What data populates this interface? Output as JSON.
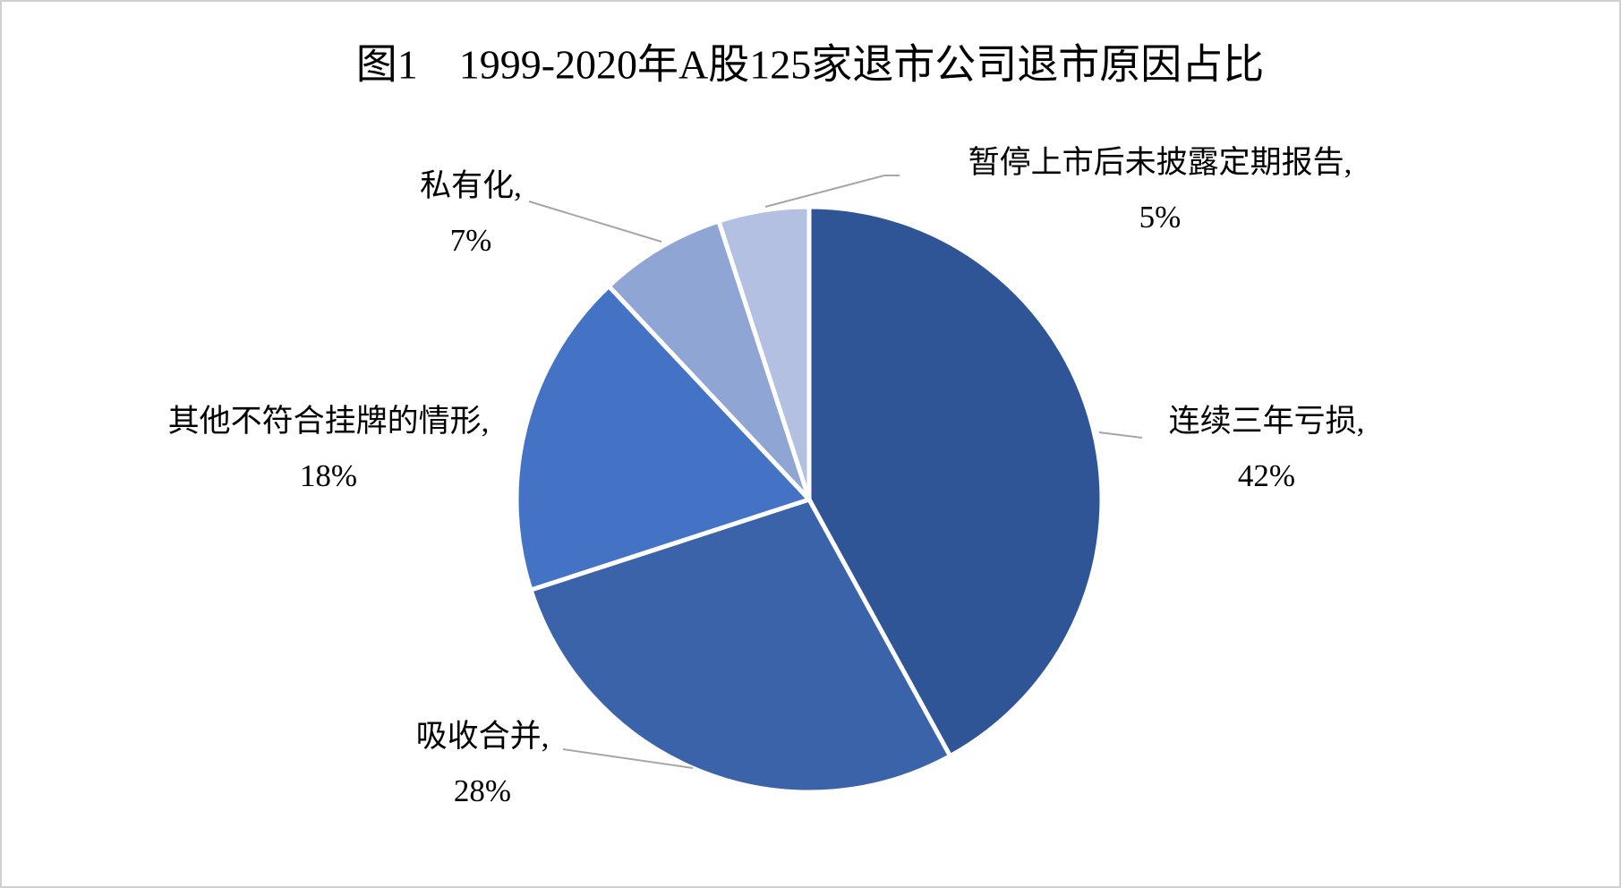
{
  "chart_data": {
    "type": "pie",
    "title": "图1　1999-2020年A股125家退市公司退市原因占比",
    "categories": [
      "连续三年亏损,",
      "吸收合并,",
      "其他不符合挂牌的情形,",
      "私有化,",
      "暂停上市后未披露定期报告,"
    ],
    "values": [
      42,
      28,
      18,
      7,
      5
    ],
    "value_labels": [
      "42%",
      "28%",
      "18%",
      "7%",
      "5%"
    ],
    "colors": [
      "#2f5597",
      "#3a63aa",
      "#4472c4",
      "#8fa5d4",
      "#b4c0e2"
    ]
  }
}
